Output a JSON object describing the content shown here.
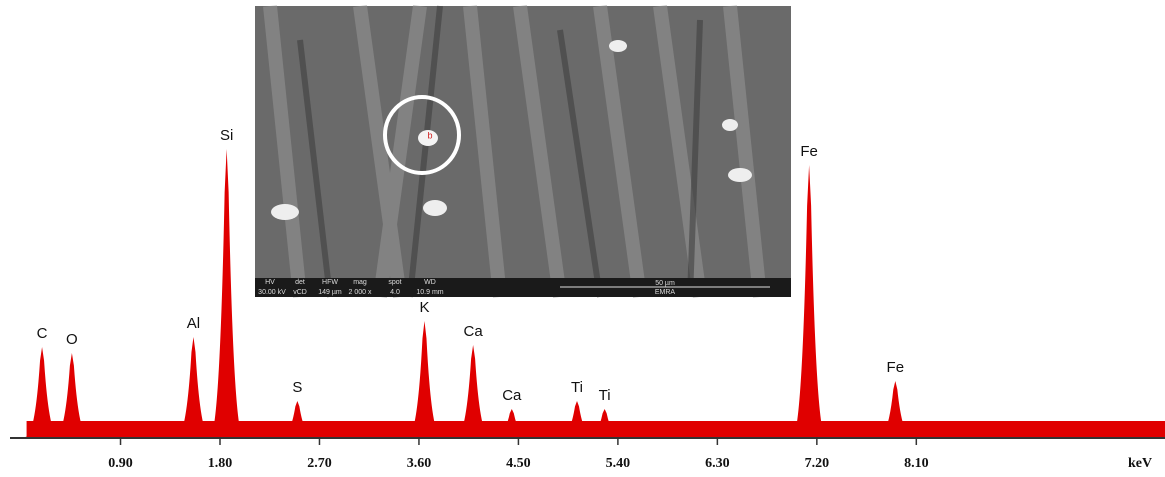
{
  "chart_data": {
    "type": "spectrum",
    "color": "#e00000",
    "x_label": "keV",
    "x": [
      0.19,
      0.46,
      1.56,
      1.86,
      2.5,
      3.65,
      4.09,
      4.44,
      5.03,
      5.28,
      7.13,
      7.91
    ],
    "values": [
      22.5,
      21,
      25,
      72,
      9,
      29,
      23,
      7,
      9,
      7,
      68,
      14
    ],
    "peak_labels": [
      "C",
      "O",
      "Al",
      "Si",
      "S",
      "K",
      "Ca",
      "Ca",
      "Ti",
      "Ti",
      "Fe",
      "Fe"
    ],
    "background": 4,
    "xlim": [
      -0.1,
      10.35
    ],
    "ylim": [
      0,
      100
    ],
    "xticks": [
      {
        "value": 0.9,
        "label": "0.90"
      },
      {
        "value": 1.8,
        "label": "1.80"
      },
      {
        "value": 2.7,
        "label": "2.70"
      },
      {
        "value": 3.6,
        "label": "3.60"
      },
      {
        "value": 4.5,
        "label": "4.50"
      },
      {
        "value": 5.4,
        "label": "5.40"
      },
      {
        "value": 6.3,
        "label": "6.30"
      },
      {
        "value": 7.2,
        "label": "7.20"
      },
      {
        "value": 8.1,
        "label": "8.10"
      }
    ]
  },
  "inset": {
    "marker": "b",
    "labels": [
      "HV",
      "det",
      "HFW",
      "mag",
      "spot",
      "WD",
      "50 µm",
      "30.00 kV",
      "vCD",
      "149 µm",
      "2 000 x",
      "4.0",
      "10.9 mm",
      "EMRA"
    ]
  }
}
